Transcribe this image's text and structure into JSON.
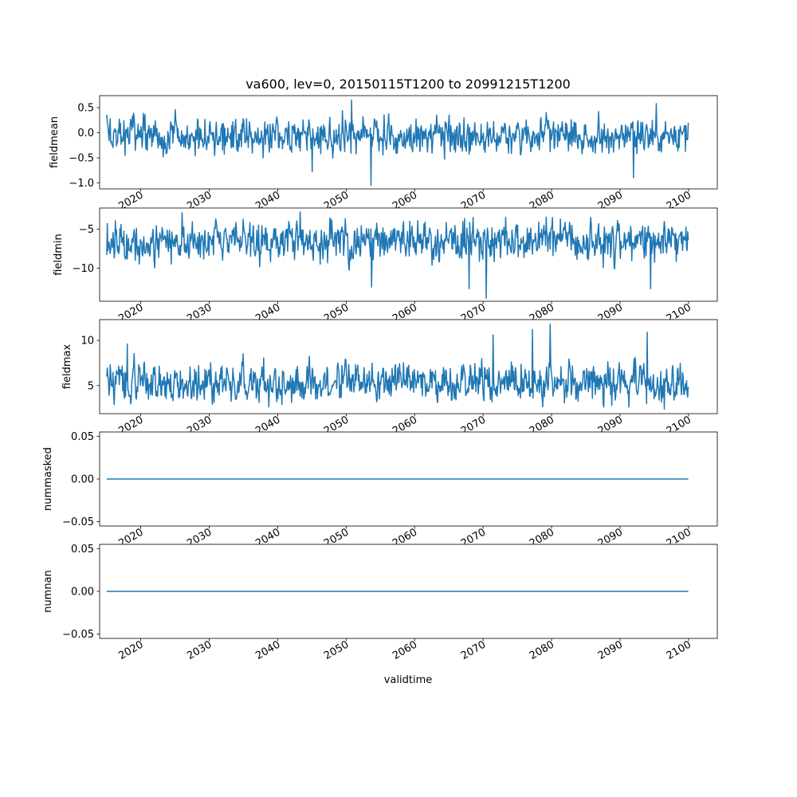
{
  "figure": {
    "title": "va600, lev=0, 20150115T1200 to 20991215T1200",
    "xlabel": "validtime",
    "series_color": "#1f77b4"
  },
  "chart_data": [
    {
      "type": "line",
      "ylabel": "fieldmean",
      "xlim": [
        2014.0,
        2104.2
      ],
      "ylim": [
        -1.12,
        0.74
      ],
      "yticks": [
        -1.0,
        -0.5,
        0.0,
        0.5
      ],
      "ytick_labels": [
        "−1.0",
        "−0.5",
        "0.0",
        "0.5"
      ],
      "xticks": [
        2020,
        2030,
        2040,
        2050,
        2060,
        2070,
        2080,
        2090,
        2100
      ],
      "xtick_labels": [
        "2020",
        "2030",
        "2040",
        "2050",
        "2060",
        "2070",
        "2080",
        "2090",
        "2100"
      ],
      "x_start": 2015.04,
      "x_end": 2099.96,
      "mean": -0.05,
      "spread": 0.22,
      "min": -1.05,
      "max": 0.65,
      "y_first": 0.36,
      "extremes": [
        [
          2050.8,
          0.65
        ],
        [
          2053.6,
          -1.05
        ],
        [
          2095.3,
          0.58
        ],
        [
          2092.0,
          -0.9
        ],
        [
          2045.0,
          -0.78
        ]
      ]
    },
    {
      "type": "line",
      "ylabel": "fieldmin",
      "xlim": [
        2014.0,
        2104.2
      ],
      "ylim": [
        -14.2,
        -2.3
      ],
      "yticks": [
        -10,
        -5
      ],
      "ytick_labels": [
        "−10",
        "−5"
      ],
      "xticks": [
        2020,
        2030,
        2040,
        2050,
        2060,
        2070,
        2080,
        2090,
        2100
      ],
      "xtick_labels": [
        "2020",
        "2030",
        "2040",
        "2050",
        "2060",
        "2070",
        "2080",
        "2090",
        "2100"
      ],
      "x_start": 2015.04,
      "x_end": 2099.96,
      "mean": -6.5,
      "spread": 1.5,
      "min": -13.8,
      "max": -2.8,
      "y_first": -8.3,
      "extremes": [
        [
          2070.5,
          -13.8
        ],
        [
          2068.0,
          -12.6
        ],
        [
          2094.5,
          -12.6
        ],
        [
          2053.7,
          -12.4
        ],
        [
          2026.0,
          -2.9
        ],
        [
          2043.3,
          -2.8
        ]
      ]
    },
    {
      "type": "line",
      "ylabel": "fieldmax",
      "xlim": [
        2014.0,
        2104.2
      ],
      "ylim": [
        1.9,
        12.3
      ],
      "yticks": [
        5,
        10
      ],
      "ytick_labels": [
        "5",
        "10"
      ],
      "xticks": [
        2020,
        2030,
        2040,
        2050,
        2060,
        2070,
        2080,
        2090,
        2100
      ],
      "xtick_labels": [
        "2020",
        "2030",
        "2040",
        "2050",
        "2060",
        "2070",
        "2080",
        "2090",
        "2100"
      ],
      "x_start": 2015.04,
      "x_end": 2099.96,
      "mean": 5.3,
      "spread": 1.3,
      "min": 2.4,
      "max": 11.8,
      "y_first": 6.0,
      "extremes": [
        [
          2079.8,
          11.8
        ],
        [
          2077.2,
          11.2
        ],
        [
          2094.0,
          10.9
        ],
        [
          2071.5,
          10.6
        ],
        [
          2018.0,
          9.6
        ],
        [
          2096.5,
          2.4
        ]
      ]
    },
    {
      "type": "line",
      "ylabel": "nummasked",
      "xlim": [
        2014.0,
        2104.2
      ],
      "ylim": [
        -0.055,
        0.055
      ],
      "yticks": [
        -0.05,
        0.0,
        0.05
      ],
      "ytick_labels": [
        "−0.05",
        "0.00",
        "0.05"
      ],
      "xticks": [
        2020,
        2030,
        2040,
        2050,
        2060,
        2070,
        2080,
        2090,
        2100
      ],
      "xtick_labels": [
        "2020",
        "2030",
        "2040",
        "2050",
        "2060",
        "2070",
        "2080",
        "2090",
        "2100"
      ],
      "x_start": 2015.04,
      "x_end": 2099.96,
      "constant": 0.0
    },
    {
      "type": "line",
      "ylabel": "numnan",
      "xlim": [
        2014.0,
        2104.2
      ],
      "ylim": [
        -0.055,
        0.055
      ],
      "yticks": [
        -0.05,
        0.0,
        0.05
      ],
      "ytick_labels": [
        "−0.05",
        "0.00",
        "0.05"
      ],
      "xticks": [
        2020,
        2030,
        2040,
        2050,
        2060,
        2070,
        2080,
        2090,
        2100
      ],
      "xtick_labels": [
        "2020",
        "2030",
        "2040",
        "2050",
        "2060",
        "2070",
        "2080",
        "2090",
        "2100"
      ],
      "x_start": 2015.04,
      "x_end": 2099.96,
      "constant": 0.0
    }
  ]
}
